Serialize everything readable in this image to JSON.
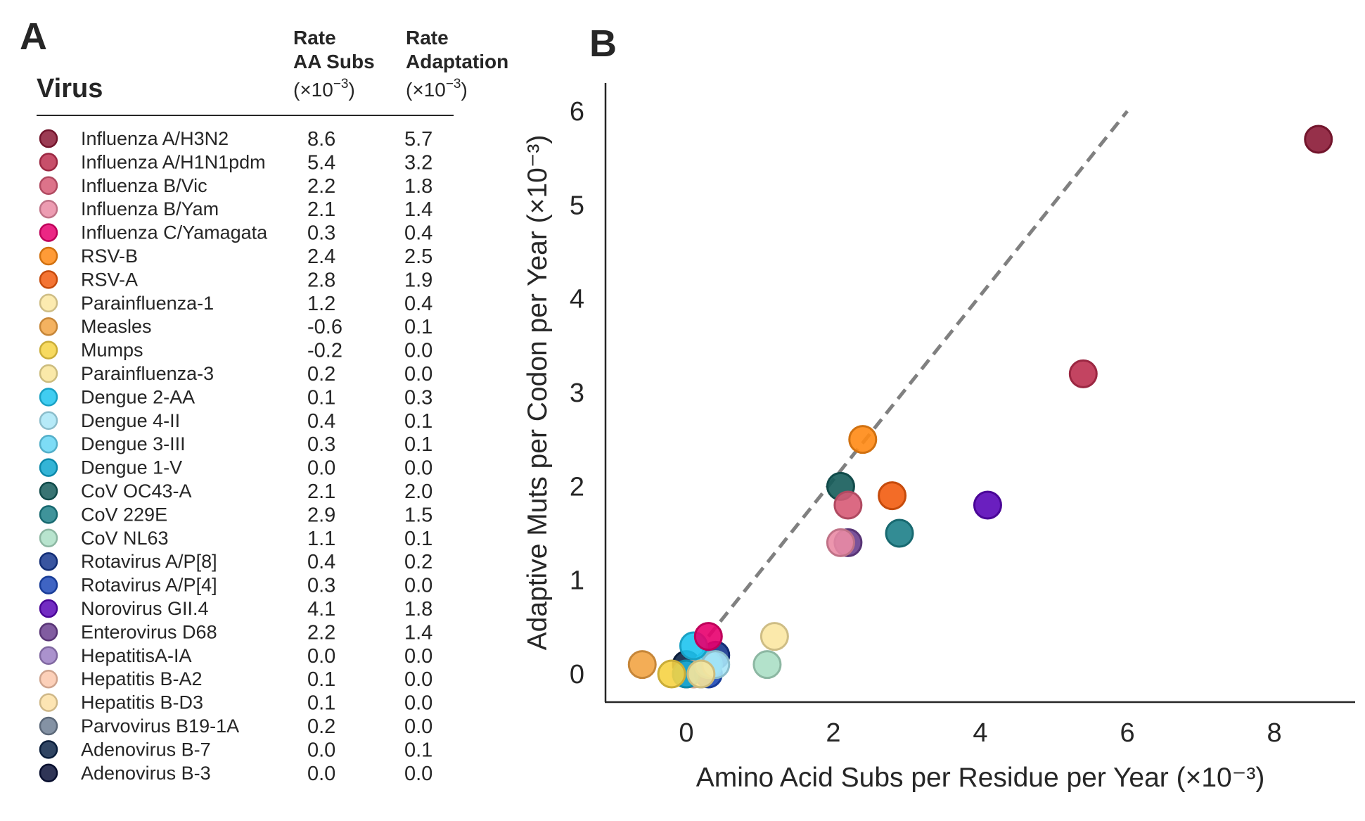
{
  "panel_a": {
    "letter": "A",
    "virus_header": "Virus",
    "col1_header": [
      "Rate",
      "AA Subs"
    ],
    "col2_header": [
      "Rate",
      "Adaptation"
    ],
    "unit": "(×10",
    "unit_exp": "−3",
    "unit_close": ")"
  },
  "panel_b": {
    "letter": "B"
  },
  "chart_data": {
    "type": "scatter",
    "xlabel": "Amino Acid Subs per Residue per Year (×10⁻³)",
    "ylabel": "Adaptive Muts per Codon per Year (×10⁻³)",
    "xlim": [
      -1.1,
      9.1
    ],
    "ylim": [
      -0.3,
      6.3
    ],
    "xticks": [
      0,
      2,
      4,
      6,
      8
    ],
    "yticks": [
      0,
      1,
      2,
      3,
      4,
      5,
      6
    ],
    "grid": false,
    "reference_line": {
      "style": "dashed",
      "color": "#808080",
      "x": [
        0.3,
        6.0
      ],
      "y": [
        0.4,
        6.0
      ]
    },
    "points": [
      {
        "name": "Influenza A/H3N2",
        "x": 8.6,
        "y": 5.7,
        "color": "#8b1a36",
        "aa": "8.6",
        "adapt": "5.7"
      },
      {
        "name": "Influenza A/H1N1pdm",
        "x": 5.4,
        "y": 3.2,
        "color": "#bd3050",
        "aa": "5.4",
        "adapt": "3.2"
      },
      {
        "name": "Influenza B/Vic",
        "x": 2.2,
        "y": 1.8,
        "color": "#d75a76",
        "aa": "2.2",
        "adapt": "1.8"
      },
      {
        "name": "Influenza B/Yam",
        "x": 2.1,
        "y": 1.4,
        "color": "#ea8ba5",
        "aa": "2.1",
        "adapt": "1.4"
      },
      {
        "name": "Influenza C/Yamagata",
        "x": 0.3,
        "y": 0.4,
        "color": "#e8006e",
        "aa": "0.3",
        "adapt": "0.4"
      },
      {
        "name": "RSV-B",
        "x": 2.4,
        "y": 2.5,
        "color": "#ff8a14",
        "aa": "2.4",
        "adapt": "2.5"
      },
      {
        "name": "RSV-A",
        "x": 2.8,
        "y": 1.9,
        "color": "#f25c0f",
        "aa": "2.8",
        "adapt": "1.9"
      },
      {
        "name": "Parainfluenza-1",
        "x": 1.2,
        "y": 0.4,
        "color": "#fbe7a2",
        "aa": "1.2",
        "adapt": "0.4"
      },
      {
        "name": "Measles",
        "x": -0.6,
        "y": 0.1,
        "color": "#f2a444",
        "aa": "-0.6",
        "adapt": "0.1"
      },
      {
        "name": "Mumps",
        "x": -0.2,
        "y": 0.0,
        "color": "#f6d344",
        "aa": "-0.2",
        "adapt": "0.0"
      },
      {
        "name": "Parainfluenza-3",
        "x": 0.2,
        "y": 0.0,
        "color": "#f9e59a",
        "aa": "0.2",
        "adapt": "0.0"
      },
      {
        "name": "Dengue 2-AA",
        "x": 0.1,
        "y": 0.3,
        "color": "#1ec4ef",
        "aa": "0.1",
        "adapt": "0.3"
      },
      {
        "name": "Dengue 4-II",
        "x": 0.4,
        "y": 0.1,
        "color": "#a9e6f7",
        "aa": "0.4",
        "adapt": "0.1"
      },
      {
        "name": "Dengue 3-III",
        "x": 0.3,
        "y": 0.1,
        "color": "#66d6f5",
        "aa": "0.3",
        "adapt": "0.1"
      },
      {
        "name": "Dengue 1-V",
        "x": 0.0,
        "y": 0.0,
        "color": "#0fa7cf",
        "aa": "0.0",
        "adapt": "0.0"
      },
      {
        "name": "CoV OC43-A",
        "x": 2.1,
        "y": 2.0,
        "color": "#155c5a",
        "aa": "2.1",
        "adapt": "2.0"
      },
      {
        "name": "CoV 229E",
        "x": 2.9,
        "y": 1.5,
        "color": "#1d8088",
        "aa": "2.9",
        "adapt": "1.5"
      },
      {
        "name": "CoV NL63",
        "x": 1.1,
        "y": 0.1,
        "color": "#abdfc5",
        "aa": "1.1",
        "adapt": "0.1"
      },
      {
        "name": "Rotavirus A/P[8]",
        "x": 0.4,
        "y": 0.2,
        "color": "#16378f",
        "aa": "0.4",
        "adapt": "0.2"
      },
      {
        "name": "Rotavirus A/P[4]",
        "x": 0.3,
        "y": 0.0,
        "color": "#1d49b8",
        "aa": "0.3",
        "adapt": "0.0"
      },
      {
        "name": "Norovirus GII.4",
        "x": 4.1,
        "y": 1.8,
        "color": "#5a07b8",
        "aa": "4.1",
        "adapt": "1.8"
      },
      {
        "name": "Enterovirus D68",
        "x": 2.2,
        "y": 1.4,
        "color": "#6b3f8f",
        "aa": "2.2",
        "adapt": "1.4"
      },
      {
        "name": "HepatitisA-IA",
        "x": 0.0,
        "y": 0.0,
        "color": "#9c7fc4",
        "aa": "0.0",
        "adapt": "0.0"
      },
      {
        "name": "Hepatitis B-A2",
        "x": 0.1,
        "y": 0.0,
        "color": "#fcc8ad",
        "aa": "0.1",
        "adapt": "0.0"
      },
      {
        "name": "Hepatitis B-D3",
        "x": 0.1,
        "y": 0.0,
        "color": "#fde0a6",
        "aa": "0.1",
        "adapt": "0.0"
      },
      {
        "name": "Parvovirus B19-1A",
        "x": 0.2,
        "y": 0.0,
        "color": "#6f7f94",
        "aa": "0.2",
        "adapt": "0.0"
      },
      {
        "name": "Adenovirus B-7",
        "x": 0.0,
        "y": 0.1,
        "color": "#0c2548",
        "aa": "0.0",
        "adapt": "0.1"
      },
      {
        "name": "Adenovirus B-3",
        "x": 0.0,
        "y": 0.0,
        "color": "#0a1238",
        "aa": "0.0",
        "adapt": "0.0"
      }
    ]
  }
}
